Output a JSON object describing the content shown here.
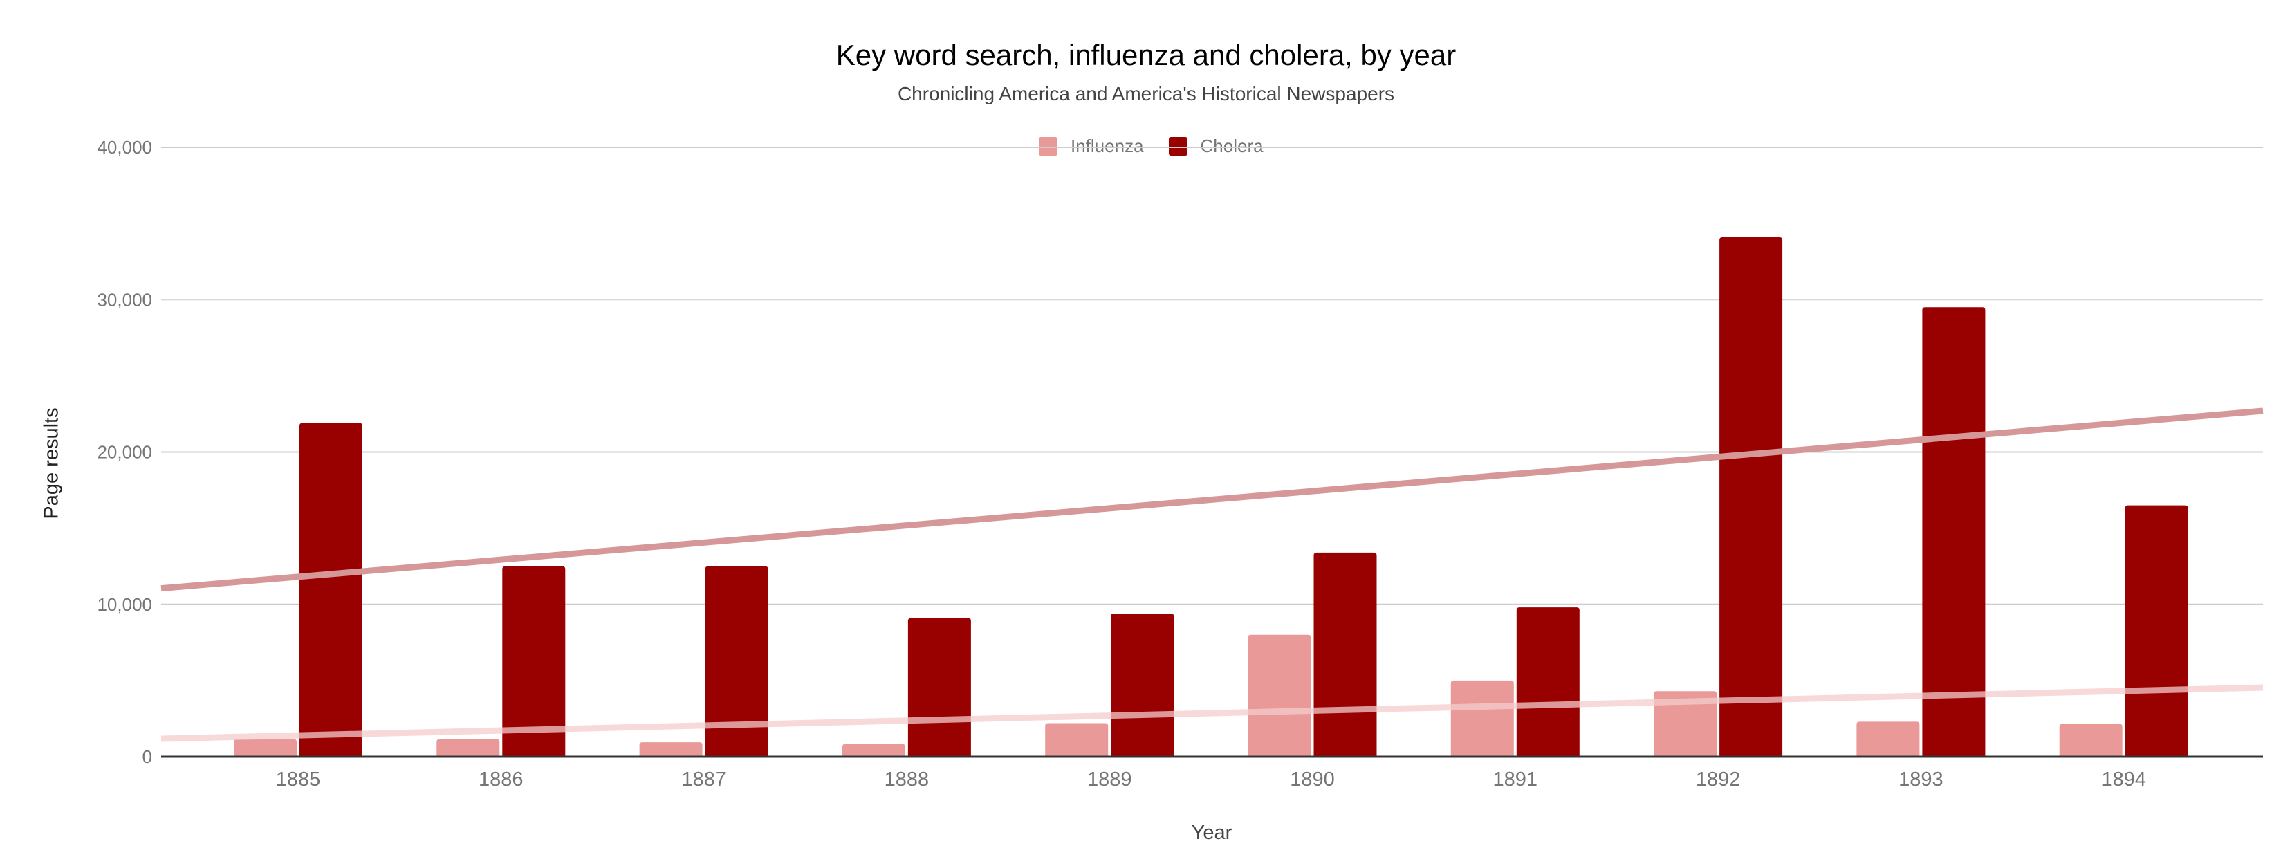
{
  "chart_data": {
    "type": "bar",
    "title": "Key word search, influenza and cholera, by year",
    "subtitle": "Chronicling America and America's Historical Newspapers",
    "xlabel": "Year",
    "ylabel": "Page results",
    "categories": [
      "1885",
      "1886",
      "1887",
      "1888",
      "1889",
      "1890",
      "1891",
      "1892",
      "1893",
      "1894"
    ],
    "series": [
      {
        "name": "Influenza",
        "color": "#EA9999",
        "values": [
          1150,
          1150,
          950,
          830,
          2200,
          8000,
          5000,
          4300,
          2300,
          2150
        ],
        "trendline": {
          "type": "linear",
          "start": 1180,
          "end": 4540,
          "color": "#F4CCCC"
        }
      },
      {
        "name": "Cholera",
        "color": "#990000",
        "values": [
          21900,
          12500,
          12500,
          9100,
          9400,
          13400,
          9800,
          34100,
          29500,
          16500
        ],
        "trendline": {
          "type": "linear",
          "start": 11050,
          "end": 22700,
          "color": "#D59797"
        }
      }
    ],
    "ylim": [
      0,
      40000
    ],
    "yticks": [
      0,
      10000,
      20000,
      30000,
      40000
    ],
    "ytick_labels": [
      "0",
      "10,000",
      "20,000",
      "30,000",
      "40,000"
    ],
    "grid": true,
    "legend_position": "top"
  },
  "legend": {
    "items": [
      {
        "label": "Influenza",
        "color": "#EA9999"
      },
      {
        "label": "Cholera",
        "color": "#990000"
      }
    ]
  }
}
